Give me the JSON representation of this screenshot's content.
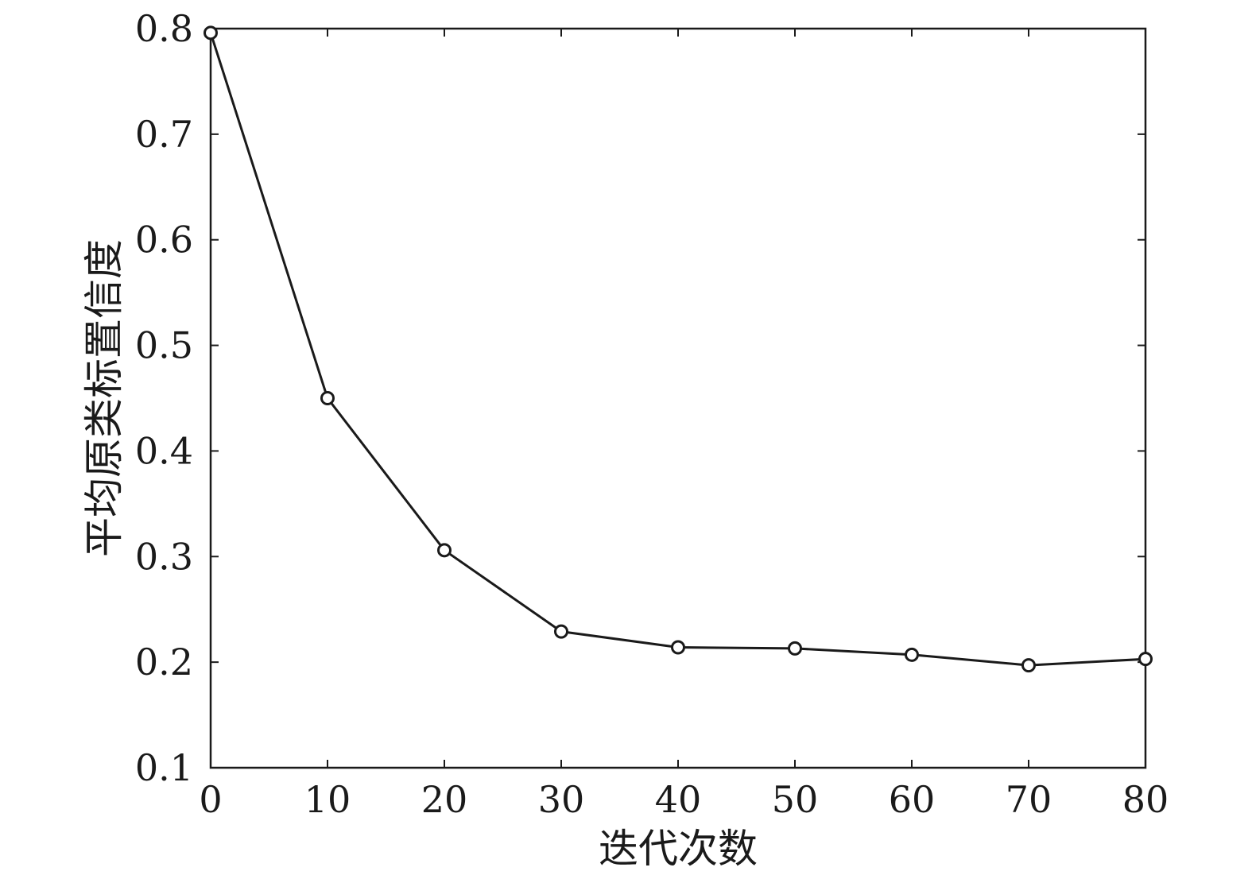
{
  "chart_data": {
    "type": "line",
    "title": "",
    "xlabel": "迭代次数",
    "ylabel": "平均原类标置信度",
    "xlim": [
      0,
      80
    ],
    "ylim": [
      0.1,
      0.8
    ],
    "xticks": [
      0,
      10,
      20,
      30,
      40,
      50,
      60,
      70,
      80
    ],
    "xtick_labels": [
      "0",
      "10",
      "20",
      "30",
      "40",
      "50",
      "60",
      "70",
      "80"
    ],
    "yticks": [
      0.1,
      0.2,
      0.3,
      0.4,
      0.5,
      0.6,
      0.7,
      0.8
    ],
    "ytick_labels": [
      "0.1",
      "0.2",
      "0.3",
      "0.4",
      "0.5",
      "0.6",
      "0.7",
      "0.8"
    ],
    "grid": false,
    "legend": "none",
    "series": [
      {
        "marker": "circle-open",
        "color": "#1a1a1a",
        "x": [
          0,
          10,
          20,
          30,
          40,
          50,
          60,
          70,
          80
        ],
        "y": [
          0.796,
          0.45,
          0.306,
          0.229,
          0.214,
          0.213,
          0.207,
          0.197,
          0.203
        ]
      }
    ]
  }
}
